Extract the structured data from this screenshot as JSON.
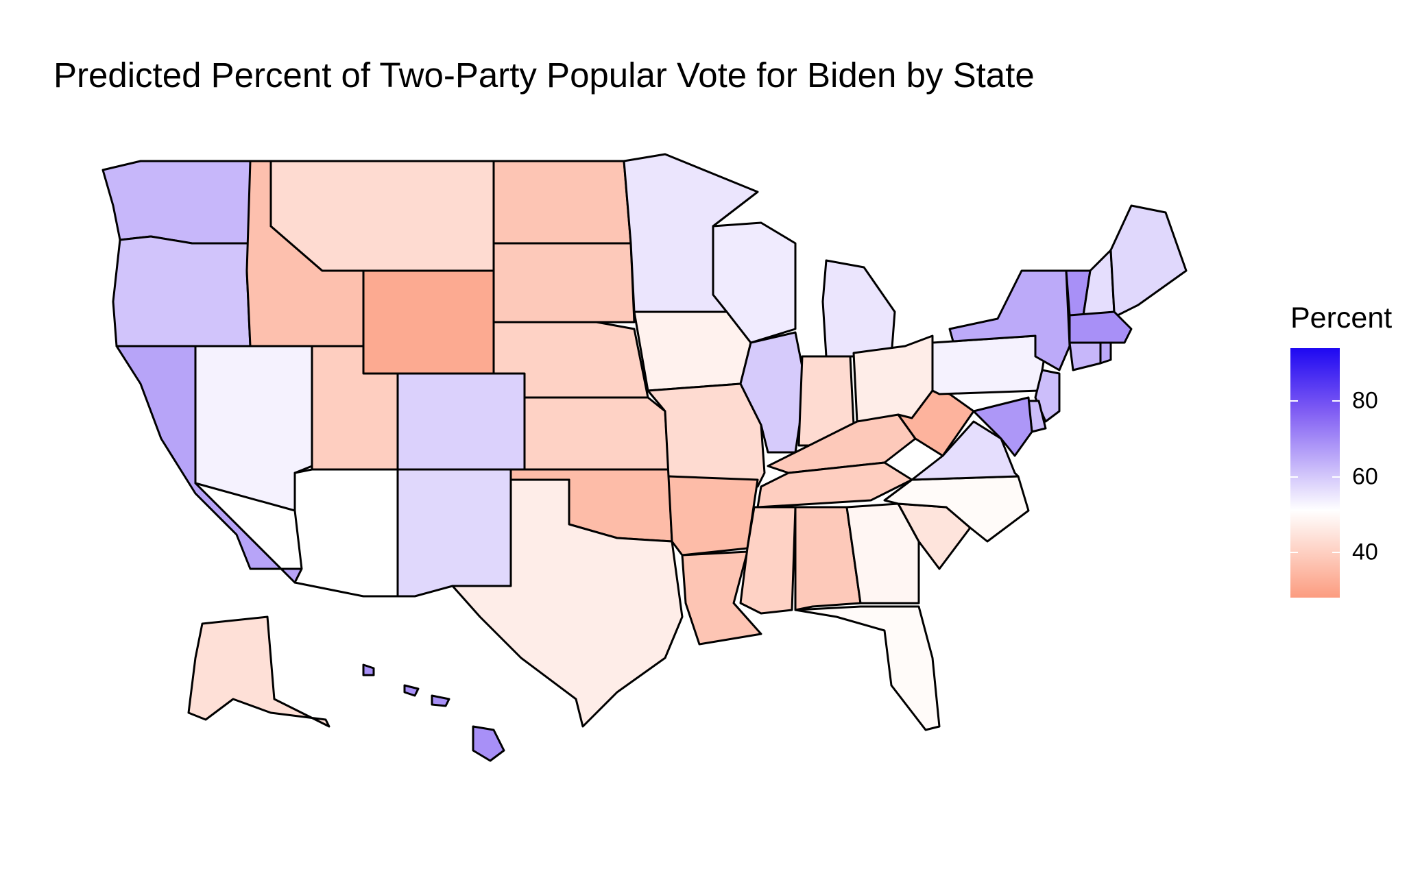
{
  "title": "Predicted Percent of Two-Party Popular Vote for Biden by State",
  "legend": {
    "title": "Percent",
    "ticks": [
      {
        "label": "80",
        "value": 80
      },
      {
        "label": "60",
        "value": 60
      },
      {
        "label": "40",
        "value": 40
      }
    ],
    "range": [
      28,
      94
    ],
    "color_low": "#fc9c80",
    "color_mid": "#ffffff",
    "color_high": "#1e08f2"
  },
  "chart_data": {
    "type": "heatmap",
    "title": "Predicted Percent of Two-Party Popular Vote for Biden by State",
    "legend_title": "Percent",
    "legend_placement": "right",
    "states": [
      {
        "state": "WA",
        "value": 61
      },
      {
        "state": "OR",
        "value": 59
      },
      {
        "state": "CA",
        "value": 64
      },
      {
        "state": "NV",
        "value": 52
      },
      {
        "state": "ID",
        "value": 36
      },
      {
        "state": "MT",
        "value": 42
      },
      {
        "state": "WY",
        "value": 31
      },
      {
        "state": "UT",
        "value": 39
      },
      {
        "state": "CO",
        "value": 57
      },
      {
        "state": "AZ",
        "value": 50
      },
      {
        "state": "NM",
        "value": 56
      },
      {
        "state": "ND",
        "value": 37
      },
      {
        "state": "SD",
        "value": 38
      },
      {
        "state": "NE",
        "value": 40
      },
      {
        "state": "KS",
        "value": 40
      },
      {
        "state": "OK",
        "value": 35
      },
      {
        "state": "TX",
        "value": 46
      },
      {
        "state": "MN",
        "value": 54
      },
      {
        "state": "IA",
        "value": 47
      },
      {
        "state": "MO",
        "value": 42
      },
      {
        "state": "AR",
        "value": 35
      },
      {
        "state": "LA",
        "value": 37
      },
      {
        "state": "WI",
        "value": 53
      },
      {
        "state": "IL",
        "value": 58
      },
      {
        "state": "MI",
        "value": 54
      },
      {
        "state": "IN",
        "value": 42
      },
      {
        "state": "OH",
        "value": 46
      },
      {
        "state": "KY",
        "value": 38
      },
      {
        "state": "TN",
        "value": 39
      },
      {
        "state": "MS",
        "value": 40
      },
      {
        "state": "AL",
        "value": 38
      },
      {
        "state": "GA",
        "value": 48
      },
      {
        "state": "FL",
        "value": 49
      },
      {
        "state": "SC",
        "value": 44
      },
      {
        "state": "NC",
        "value": 49
      },
      {
        "state": "VA",
        "value": 55
      },
      {
        "state": "WV",
        "value": 33
      },
      {
        "state": "PA",
        "value": 52
      },
      {
        "state": "NY",
        "value": 63
      },
      {
        "state": "VT",
        "value": 67
      },
      {
        "state": "NH",
        "value": 55
      },
      {
        "state": "ME",
        "value": 56
      },
      {
        "state": "MA",
        "value": 67
      },
      {
        "state": "CT",
        "value": 61
      },
      {
        "state": "RI",
        "value": 63
      },
      {
        "state": "NJ",
        "value": 60
      },
      {
        "state": "DE",
        "value": 60
      },
      {
        "state": "MD",
        "value": 66
      },
      {
        "state": "AK",
        "value": 43
      },
      {
        "state": "HI",
        "value": 67
      }
    ]
  }
}
